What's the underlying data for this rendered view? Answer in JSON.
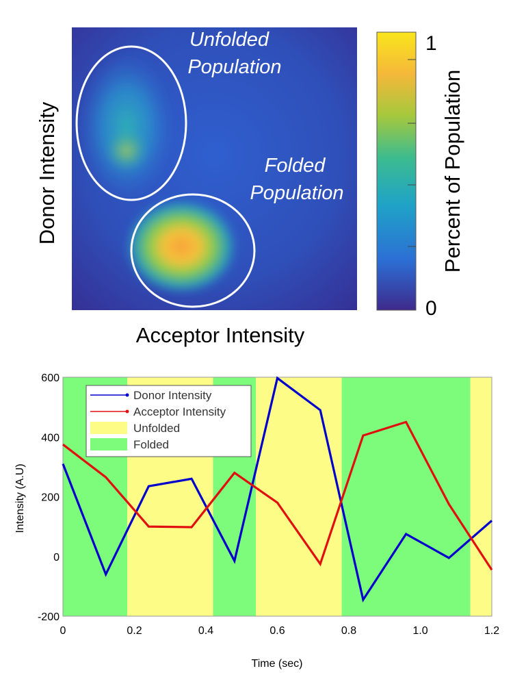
{
  "chart_data": [
    {
      "type": "heatmap",
      "xlabel": "Acceptor Intensity",
      "ylabel": "Donor Intensity",
      "colorbar": {
        "label": "Percent of Population",
        "min_label": "0",
        "max_label": "1",
        "colormap": [
          "#3e2a8c",
          "#2c6fd4",
          "#1fa3c7",
          "#3dbc8e",
          "#a6c83c",
          "#f5b83a",
          "#f9e51c"
        ]
      },
      "annotations": [
        {
          "text_lines": [
            "Unfolded",
            "Population"
          ],
          "region": "upper-left"
        },
        {
          "text_lines": [
            "Folded",
            "Population"
          ],
          "region": "lower-center"
        }
      ]
    },
    {
      "type": "line",
      "xlabel": "Time (sec)",
      "ylabel": "Intensity (A.U)",
      "xlim": [
        0,
        1.2
      ],
      "ylim": [
        -200,
        600
      ],
      "xticks": [
        "0",
        "0.2",
        "0.4",
        "0.6",
        "0.8",
        "1.0",
        "1.2"
      ],
      "yticks": [
        "-200",
        "0",
        "200",
        "400",
        "600"
      ],
      "x": [
        0,
        0.12,
        0.24,
        0.36,
        0.48,
        0.6,
        0.72,
        0.84,
        0.96,
        1.08,
        1.2
      ],
      "series": [
        {
          "name": "Donor Intensity",
          "color": "#0000cc",
          "values": [
            310,
            -60,
            235,
            260,
            -15,
            597,
            490,
            -145,
            75,
            -5,
            120
          ]
        },
        {
          "name": "Acceptor Intensity",
          "color": "#e01010",
          "values": [
            375,
            265,
            100,
            98,
            280,
            180,
            -25,
            405,
            450,
            175,
            -45
          ]
        }
      ],
      "states": [
        {
          "label": "Folded",
          "start": 0,
          "end": 0.18
        },
        {
          "label": "Unfolded",
          "start": 0.18,
          "end": 0.42
        },
        {
          "label": "Folded",
          "start": 0.42,
          "end": 0.54
        },
        {
          "label": "Unfolded",
          "start": 0.54,
          "end": 0.78
        },
        {
          "label": "Folded",
          "start": 0.78,
          "end": 1.14
        },
        {
          "label": "Unfolded",
          "start": 1.14,
          "end": 1.2
        }
      ],
      "state_colors": {
        "Unfolded": "#fdfc86",
        "Folded": "#7dfb7a"
      },
      "legend": [
        {
          "label": "Donor Intensity",
          "kind": "line",
          "color": "#0000cc"
        },
        {
          "label": "Acceptor Intensity",
          "kind": "line",
          "color": "#e01010"
        },
        {
          "label": "Unfolded",
          "kind": "patch",
          "color": "#fdfc86"
        },
        {
          "label": "Folded",
          "kind": "patch",
          "color": "#7dfb7a"
        }
      ],
      "legend_position": "top-left"
    }
  ]
}
